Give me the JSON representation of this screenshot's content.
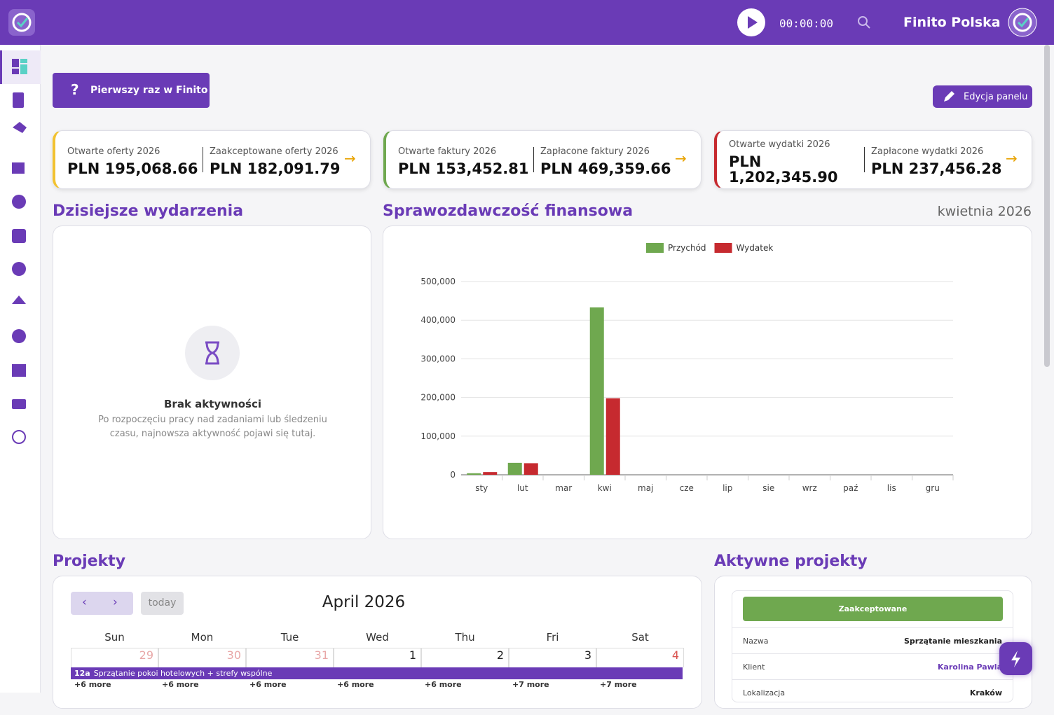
{
  "header": {
    "timer": "00:00:00",
    "company": "Finito Polska"
  },
  "toolbar": {
    "help_icon": "?",
    "first_time": "Pierwszy raz w Finito",
    "edit_panel": "Edycja panelu"
  },
  "kpis": [
    {
      "items": [
        {
          "label": "Otwarte oferty 2026",
          "value": "PLN 195,068.66"
        },
        {
          "label": "Zaakceptowane oferty 2026",
          "value": "PLN 182,091.79"
        }
      ]
    },
    {
      "items": [
        {
          "label": "Otwarte faktury 2026",
          "value": "PLN 153,452.81"
        },
        {
          "label": "Zapłacone faktury 2026",
          "value": "PLN 469,359.66"
        }
      ]
    },
    {
      "items": [
        {
          "label": "Otwarte wydatki 2026",
          "value": "PLN 1,202,345.90"
        },
        {
          "label": "Zapłacone wydatki 2026",
          "value": "PLN 237,456.28"
        }
      ]
    }
  ],
  "events": {
    "title": "Dzisiejsze wydarzenia",
    "empty_title": "Brak aktywności",
    "empty_text": "Po rozpoczęciu pracy nad zadaniami lub śledzeniu czasu, najnowsza aktywność pojawi się tutaj."
  },
  "chart_data": {
    "type": "bar",
    "title": "Sprawozdawczość finansowa",
    "subtitle": "kwietnia 2026",
    "categories": [
      "sty",
      "lut",
      "mar",
      "kwi",
      "maj",
      "cze",
      "lip",
      "sie",
      "wrz",
      "paź",
      "lis",
      "gru"
    ],
    "series": [
      {
        "name": "Przychód",
        "color": "#6fa84f",
        "values": [
          4000,
          31000,
          0,
          433000,
          0,
          0,
          0,
          0,
          0,
          0,
          0,
          0
        ]
      },
      {
        "name": "Wydatek",
        "color": "#c62a2f",
        "values": [
          7000,
          30000,
          0,
          198000,
          0,
          0,
          0,
          0,
          0,
          0,
          0,
          0
        ]
      }
    ],
    "ylim": [
      0,
      500000
    ],
    "yticks": [
      0,
      {
        "value": 100000,
        "label": "100,000"
      },
      {
        "value": 200000,
        "label": "200,000"
      },
      {
        "value": 300000,
        "label": "300,000"
      },
      {
        "value": 400000,
        "label": "400,000"
      },
      {
        "value": 500000,
        "label": "500,000"
      }
    ],
    "grid": true,
    "legend": "top"
  },
  "projects": {
    "title": "Projekty",
    "calendar": {
      "today": "today",
      "month": "April 2026",
      "weekdays": [
        "Sun",
        "Mon",
        "Tue",
        "Wed",
        "Thu",
        "Fri",
        "Sat"
      ],
      "days": [
        29,
        30,
        31,
        1,
        2,
        3,
        4
      ],
      "event": {
        "time": "12a",
        "title": "Sprzątanie pokoi hotelowych + strefy wspólne"
      },
      "more": [
        "+6 more",
        "+6 more",
        "+6 more",
        "+6 more",
        "+6 more",
        "+7 more",
        "+7 more"
      ]
    }
  },
  "active_projects": {
    "title": "Aktywne projekty",
    "status": "Zaakceptowane",
    "rows": [
      [
        "Nazwa",
        "Sprzątanie mieszkania"
      ],
      [
        "Klient",
        "Karolina Pawla"
      ],
      [
        "Lokalizacja",
        "Kraków"
      ]
    ]
  }
}
